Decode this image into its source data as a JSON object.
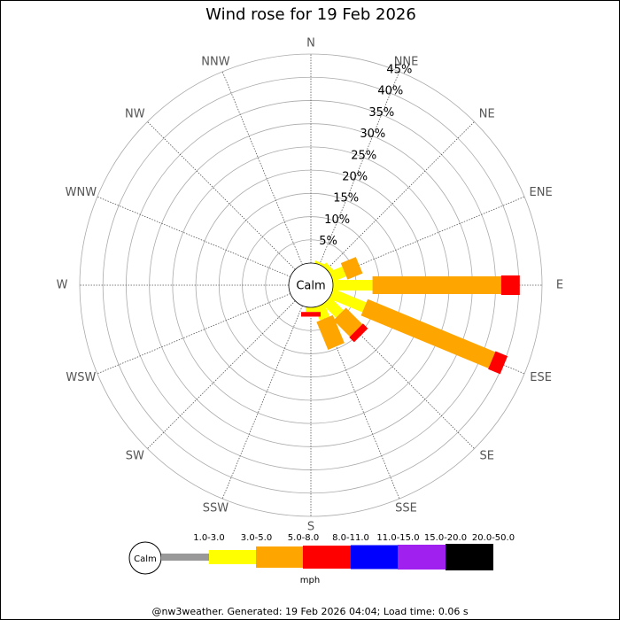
{
  "chart_data": {
    "type": "windrose",
    "title": "Wind rose for 19 Feb 2026",
    "directions": [
      "N",
      "NNE",
      "NE",
      "ENE",
      "E",
      "ESE",
      "SE",
      "SSE",
      "S",
      "SSW",
      "SW",
      "WSW",
      "W",
      "WNW",
      "NW",
      "NNW"
    ],
    "series": [
      {
        "name": "1.0-3.0",
        "color": "#999999",
        "values": [
          0,
          0,
          0,
          0,
          0,
          0,
          0,
          0,
          0,
          0,
          0,
          0,
          0,
          0,
          0,
          0
        ]
      },
      {
        "name": "3.0-5.0",
        "color": "#ffff00",
        "values": [
          0,
          0.5,
          1,
          3,
          8.5,
          7.7,
          4,
          3,
          1,
          0,
          0,
          0,
          0,
          0,
          0,
          0
        ]
      },
      {
        "name": "5.0-8.0",
        "color": "#ffa500",
        "values": [
          0,
          0,
          0,
          3.5,
          27.7,
          29.7,
          5,
          6.5,
          0,
          0,
          0,
          0,
          0,
          0,
          0,
          0
        ]
      },
      {
        "name": "8.0-11.0",
        "color": "#ff0000",
        "values": [
          0,
          0,
          0,
          0,
          4,
          2.8,
          1.5,
          0,
          1,
          0,
          0,
          0,
          0,
          0,
          0,
          0
        ]
      },
      {
        "name": "11.0-15.0",
        "color": "#0000ff",
        "values": [
          0,
          0,
          0,
          0,
          0,
          0,
          0,
          0,
          0,
          0,
          0,
          0,
          0,
          0,
          0,
          0
        ]
      },
      {
        "name": "15.0-20.0",
        "color": "#a020f0",
        "values": [
          0,
          0,
          0,
          0,
          0,
          0,
          0,
          0,
          0,
          0,
          0,
          0,
          0,
          0,
          0,
          0
        ]
      },
      {
        "name": "20.0-50.0",
        "color": "#000000",
        "values": [
          0,
          0,
          0,
          0,
          0,
          0,
          0,
          0,
          0,
          0,
          0,
          0,
          0,
          0,
          0,
          0
        ]
      }
    ],
    "rlim": [
      0,
      45
    ],
    "rticks": [
      {
        "value": 5,
        "label": "5%"
      },
      {
        "value": 10,
        "label": "10%"
      },
      {
        "value": 15,
        "label": "15%"
      },
      {
        "value": 20,
        "label": "20%"
      },
      {
        "value": 25,
        "label": "25%"
      },
      {
        "value": 30,
        "label": "30%"
      },
      {
        "value": 35,
        "label": "35%"
      },
      {
        "value": 40,
        "label": "40%"
      },
      {
        "value": 45,
        "label": "45%"
      }
    ],
    "center_label": "Calm",
    "unit": "mph",
    "footer": "@nw3weather. Generated: 19 Feb 2026 04:04; Load time: 0.06 s"
  }
}
